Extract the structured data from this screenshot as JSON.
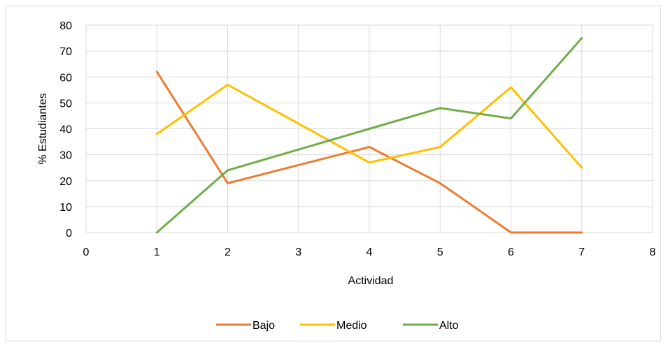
{
  "chart_data": {
    "type": "line",
    "title": "",
    "xlabel": "Actividad",
    "ylabel": "% Estudiantes",
    "xlim": [
      0,
      8
    ],
    "ylim": [
      0,
      80
    ],
    "x_ticks": [
      0,
      1,
      2,
      3,
      4,
      5,
      6,
      7,
      8
    ],
    "y_ticks": [
      0,
      10,
      20,
      30,
      40,
      50,
      60,
      70,
      80
    ],
    "grid": true,
    "legend_position": "bottom",
    "series": [
      {
        "name": "Bajo",
        "color": "#ED7D31",
        "x": [
          1,
          2,
          3,
          4,
          5,
          6,
          7
        ],
        "y": [
          62,
          19,
          26,
          33,
          19,
          0,
          0
        ]
      },
      {
        "name": "Medio",
        "color": "#FFC000",
        "x": [
          1,
          2,
          3,
          4,
          5,
          6,
          7
        ],
        "y": [
          38,
          57,
          42,
          27,
          33,
          56,
          25
        ]
      },
      {
        "name": "Alto",
        "color": "#70AD47",
        "x": [
          1,
          2,
          3,
          4,
          5,
          6,
          7
        ],
        "y": [
          0,
          24,
          32,
          40,
          48,
          44,
          75
        ]
      }
    ]
  }
}
